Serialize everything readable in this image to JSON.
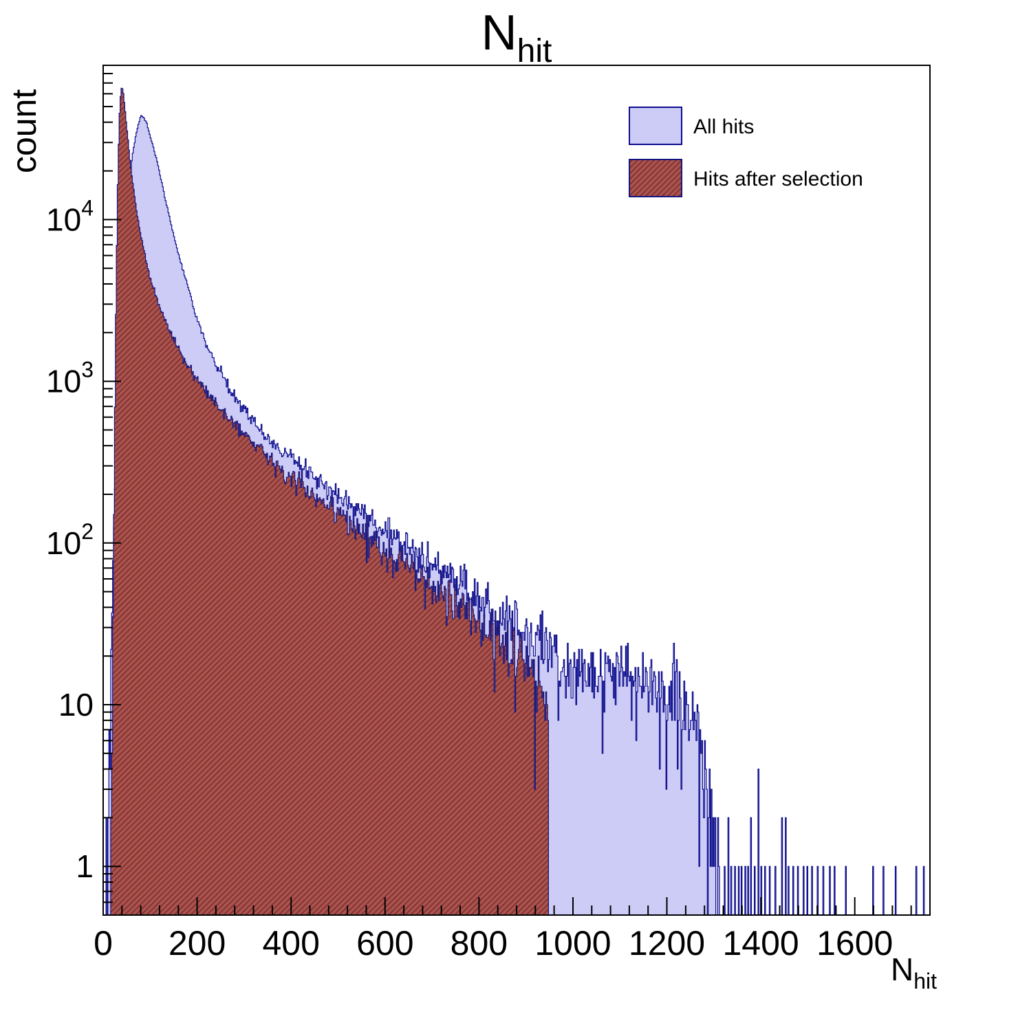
{
  "chart_data": {
    "type": "histogram",
    "title_main": "N",
    "title_sub": "hit",
    "ylabel": "count",
    "xlabel_main": "N",
    "xlabel_sub": "hit",
    "log_y": true,
    "x_min": 0,
    "x_max": 1760,
    "y_min": 0.5,
    "y_max": 90000,
    "bin_width": 2,
    "x_ticks": [
      0,
      200,
      400,
      600,
      800,
      1000,
      1200,
      1400,
      1600
    ],
    "x_minor_step": 40,
    "y_ticks": [
      {
        "value": 1,
        "label": "1",
        "exp": ""
      },
      {
        "value": 10,
        "label": "10",
        "exp": ""
      },
      {
        "value": 100,
        "label": "10",
        "exp": "2"
      },
      {
        "value": 1000,
        "label": "10",
        "exp": "3"
      },
      {
        "value": 10000,
        "label": "10",
        "exp": "4"
      }
    ],
    "frame_color": "#000000",
    "series": [
      {
        "name": "All hits",
        "fill_color": "#ccccf6",
        "line_color": "#0b0b8c",
        "hatch": false,
        "peak": {
          "x": 80,
          "count": 44000
        },
        "envelope": [
          [
            6,
            0.6
          ],
          [
            10,
            2
          ],
          [
            14,
            8
          ],
          [
            20,
            60
          ],
          [
            26,
            300
          ],
          [
            32,
            1200
          ],
          [
            40,
            4500
          ],
          [
            48,
            10000
          ],
          [
            56,
            18000
          ],
          [
            64,
            27000
          ],
          [
            72,
            36000
          ],
          [
            80,
            44000
          ],
          [
            86,
            43000
          ],
          [
            92,
            40000
          ],
          [
            100,
            33000
          ],
          [
            110,
            26000
          ],
          [
            120,
            19500
          ],
          [
            132,
            13500
          ],
          [
            145,
            9200
          ],
          [
            160,
            6200
          ],
          [
            180,
            3900
          ],
          [
            200,
            2400
          ],
          [
            220,
            1700
          ],
          [
            240,
            1250
          ],
          [
            265,
            950
          ],
          [
            290,
            720
          ],
          [
            320,
            560
          ],
          [
            350,
            450
          ],
          [
            380,
            375
          ],
          [
            410,
            320
          ],
          [
            440,
            272
          ],
          [
            470,
            232
          ],
          [
            500,
            198
          ],
          [
            530,
            170
          ],
          [
            560,
            148
          ],
          [
            590,
            126
          ],
          [
            620,
            110
          ],
          [
            650,
            95
          ],
          [
            680,
            82
          ],
          [
            710,
            70
          ],
          [
            740,
            60
          ],
          [
            770,
            52
          ],
          [
            800,
            46
          ],
          [
            830,
            40
          ],
          [
            860,
            35
          ],
          [
            890,
            30
          ],
          [
            920,
            26
          ],
          [
            950,
            21
          ],
          [
            980,
            18
          ],
          [
            1010,
            17
          ],
          [
            1050,
            16
          ],
          [
            1100,
            15
          ],
          [
            1150,
            13.5
          ],
          [
            1200,
            12.5
          ],
          [
            1230,
            11
          ],
          [
            1255,
            8
          ],
          [
            1275,
            4
          ],
          [
            1295,
            1.6
          ],
          [
            1312,
            0.8
          ]
        ],
        "sparse_bins": [
          [
            1322,
            1
          ],
          [
            1330,
            2
          ],
          [
            1336,
            1
          ],
          [
            1344,
            1
          ],
          [
            1352,
            1
          ],
          [
            1358,
            1
          ],
          [
            1366,
            1
          ],
          [
            1372,
            1
          ],
          [
            1378,
            2
          ],
          [
            1386,
            1
          ],
          [
            1394,
            4
          ],
          [
            1400,
            1
          ],
          [
            1408,
            1
          ],
          [
            1418,
            1
          ],
          [
            1430,
            1
          ],
          [
            1444,
            2
          ],
          [
            1452,
            2
          ],
          [
            1458,
            1
          ],
          [
            1468,
            1
          ],
          [
            1478,
            1
          ],
          [
            1490,
            1
          ],
          [
            1498,
            1
          ],
          [
            1508,
            1
          ],
          [
            1520,
            1
          ],
          [
            1532,
            1
          ],
          [
            1546,
            1
          ],
          [
            1556,
            1
          ],
          [
            1580,
            1
          ],
          [
            1638,
            1
          ],
          [
            1660,
            1
          ],
          [
            1686,
            1
          ],
          [
            1730,
            1
          ],
          [
            1746,
            1
          ]
        ]
      },
      {
        "name": "Hits after selection",
        "fill_color": "#aa524e",
        "line_color": "#14147e",
        "hatch": true,
        "peak": {
          "x": 40,
          "count": 65000
        },
        "cutoff_x": 950,
        "envelope": [
          [
            14,
            0.6
          ],
          [
            18,
            4
          ],
          [
            22,
            60
          ],
          [
            26,
            1500
          ],
          [
            30,
            12000
          ],
          [
            34,
            40000
          ],
          [
            38,
            65000
          ],
          [
            42,
            64000
          ],
          [
            46,
            50000
          ],
          [
            52,
            33000
          ],
          [
            58,
            22000
          ],
          [
            64,
            16000
          ],
          [
            72,
            11000
          ],
          [
            80,
            8000
          ],
          [
            90,
            5800
          ],
          [
            100,
            4400
          ],
          [
            110,
            3500
          ],
          [
            122,
            2800
          ],
          [
            135,
            2250
          ],
          [
            150,
            1800
          ],
          [
            165,
            1480
          ],
          [
            182,
            1220
          ],
          [
            200,
            1020
          ],
          [
            220,
            860
          ],
          [
            242,
            720
          ],
          [
            265,
            610
          ],
          [
            290,
            510
          ],
          [
            320,
            420
          ],
          [
            350,
            345
          ],
          [
            380,
            290
          ],
          [
            410,
            245
          ],
          [
            440,
            208
          ],
          [
            470,
            178
          ],
          [
            500,
            152
          ],
          [
            530,
            130
          ],
          [
            560,
            112
          ],
          [
            590,
            96
          ],
          [
            620,
            83
          ],
          [
            650,
            71
          ],
          [
            680,
            61
          ],
          [
            710,
            52
          ],
          [
            740,
            45
          ],
          [
            770,
            38
          ],
          [
            800,
            32
          ],
          [
            830,
            27
          ],
          [
            860,
            23
          ],
          [
            890,
            19
          ],
          [
            915,
            16
          ],
          [
            935,
            13
          ],
          [
            948,
            11
          ]
        ],
        "sparse_bins": []
      }
    ]
  }
}
